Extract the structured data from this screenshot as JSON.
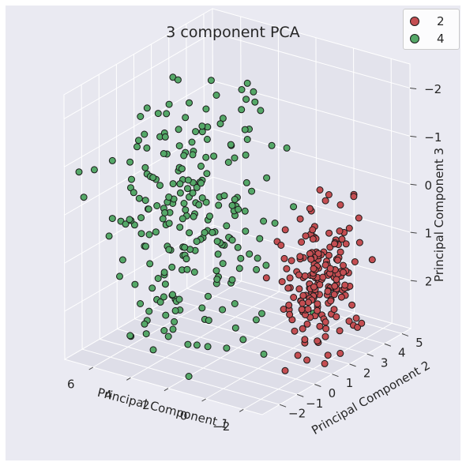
{
  "chart_data": {
    "type": "scatter",
    "title": "3 component PCA",
    "xlabel": "Principal Component 1",
    "ylabel": "Principal Component 2",
    "zlabel": "Principal Component 3",
    "xlim": [
      -3,
      7.5
    ],
    "ylim": [
      -3,
      5.5
    ],
    "zlim": [
      -2.5,
      3
    ],
    "z_inverted": true,
    "x_ticks": [
      "6",
      "4",
      "2",
      "0",
      "−2"
    ],
    "y_ticks": [
      "−2",
      "−1",
      "0",
      "1",
      "2",
      "3",
      "4",
      "5"
    ],
    "z_ticks": [
      "−2",
      "−1",
      "0",
      "1",
      "2"
    ],
    "grid": true,
    "legend_position": "top-right",
    "series": [
      {
        "name": "2",
        "color": "#c44e52",
        "generator": {
          "n": 190,
          "seed": 7,
          "center": [
            -2.0,
            1.4,
            1.2
          ],
          "spread": [
            0.7,
            0.9,
            0.7
          ]
        }
      },
      {
        "name": "4",
        "color": "#55a868",
        "generator": {
          "n": 240,
          "seed": 13,
          "center": [
            3.3,
            -0.6,
            0.1
          ],
          "spread": [
            1.6,
            1.6,
            1.3
          ]
        }
      }
    ]
  },
  "legend": {
    "items": [
      {
        "label": "2",
        "color": "#c44e52"
      },
      {
        "label": "4",
        "color": "#55a868"
      }
    ]
  }
}
